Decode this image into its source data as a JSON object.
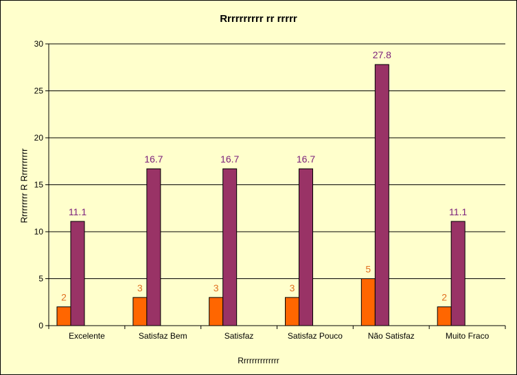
{
  "chart_data": {
    "type": "bar",
    "title": "Rrrrrrrrrr rr rrrrr",
    "xlabel": "Rrrrrrrrrrrrrr",
    "ylabel": "Rrrrrrrrr R Rrrrrrrrrr",
    "categories": [
      "Excelente",
      "Satisfaz Bem",
      "Satisfaz",
      "Satisfaz Pouco",
      "Não Satisfaz",
      "Muito Fraco"
    ],
    "series": [
      {
        "values": [
          2,
          3,
          3,
          3,
          5,
          2
        ],
        "color": "#ff6600",
        "label_color": "#e07020"
      },
      {
        "values": [
          11.1,
          16.7,
          16.7,
          16.7,
          27.8,
          11.1
        ],
        "color": "#993366",
        "label_color": "#7a1e7a"
      }
    ],
    "ylim": [
      0,
      30
    ],
    "yticks": [
      0,
      5,
      10,
      15,
      20,
      25,
      30
    ],
    "grid": true,
    "legend": "none",
    "data_labels": true
  }
}
